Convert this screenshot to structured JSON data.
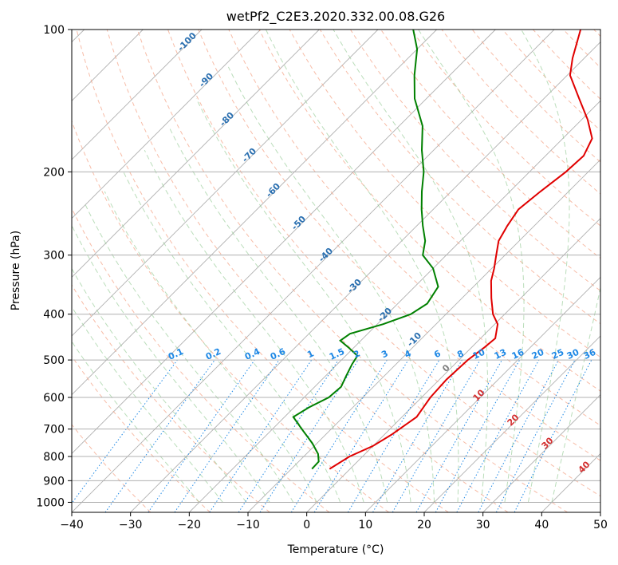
{
  "chart_data": {
    "type": "line",
    "title": "wetPf2_C2E3.2020.332.00.08.G26",
    "xlabel": "Temperature (°C)",
    "ylabel": "Pressure (hPa)",
    "xlim": [
      -40,
      50
    ],
    "ylim": [
      1050,
      100
    ],
    "y_scale": "log",
    "grid": true,
    "x_ticks": [
      -40,
      -30,
      -20,
      -10,
      0,
      10,
      20,
      30,
      40,
      50
    ],
    "x_tick_labels": [
      "−40",
      "−30",
      "−20",
      "−10",
      "0",
      "10",
      "20",
      "30",
      "40",
      "50"
    ],
    "y_ticks": [
      1000,
      900,
      800,
      700,
      600,
      500,
      400,
      300,
      200,
      100
    ],
    "y_tick_labels": [
      "1000",
      "900",
      "800",
      "700",
      "600",
      "500",
      "400",
      "300",
      "200",
      "100"
    ],
    "skew": 45,
    "series": [
      {
        "color": "#e00000",
        "points": [
          {
            "p": 850,
            "t": -3.5
          },
          {
            "p": 800,
            "t": -2.2
          },
          {
            "p": 760,
            "t": 0.0
          },
          {
            "p": 720,
            "t": 1.2
          },
          {
            "p": 660,
            "t": 2.5
          },
          {
            "p": 600,
            "t": 1.5
          },
          {
            "p": 550,
            "t": 1.2
          },
          {
            "p": 500,
            "t": 1.5
          },
          {
            "p": 470,
            "t": 2.2
          },
          {
            "p": 450,
            "t": 2.5
          },
          {
            "p": 420,
            "t": 0.5
          },
          {
            "p": 400,
            "t": -2.0
          },
          {
            "p": 370,
            "t": -5.0
          },
          {
            "p": 340,
            "t": -8.0
          },
          {
            "p": 320,
            "t": -9.6
          },
          {
            "p": 300,
            "t": -11.5
          },
          {
            "p": 280,
            "t": -13.5
          },
          {
            "p": 260,
            "t": -14.6
          },
          {
            "p": 240,
            "t": -15.5
          },
          {
            "p": 220,
            "t": -14.8
          },
          {
            "p": 200,
            "t": -13.8
          },
          {
            "p": 185,
            "t": -13.5
          },
          {
            "p": 170,
            "t": -15.0
          },
          {
            "p": 155,
            "t": -19.0
          },
          {
            "p": 140,
            "t": -24.0
          },
          {
            "p": 125,
            "t": -29.5
          },
          {
            "p": 115,
            "t": -32.0
          },
          {
            "p": 100,
            "t": -35.5
          }
        ]
      },
      {
        "color": "#008000",
        "points": [
          {
            "p": 850,
            "t": -6.5
          },
          {
            "p": 820,
            "t": -6.6
          },
          {
            "p": 790,
            "t": -8.0
          },
          {
            "p": 750,
            "t": -10.8
          },
          {
            "p": 700,
            "t": -15.0
          },
          {
            "p": 660,
            "t": -18.5
          },
          {
            "p": 630,
            "t": -17.5
          },
          {
            "p": 600,
            "t": -15.8
          },
          {
            "p": 570,
            "t": -15.5
          },
          {
            "p": 540,
            "t": -16.5
          },
          {
            "p": 510,
            "t": -17.5
          },
          {
            "p": 490,
            "t": -18.0
          },
          {
            "p": 470,
            "t": -21.0
          },
          {
            "p": 455,
            "t": -23.5
          },
          {
            "p": 440,
            "t": -23.0
          },
          {
            "p": 420,
            "t": -19.0
          },
          {
            "p": 400,
            "t": -16.0
          },
          {
            "p": 380,
            "t": -15.0
          },
          {
            "p": 350,
            "t": -16.0
          },
          {
            "p": 320,
            "t": -20.0
          },
          {
            "p": 300,
            "t": -24.0
          },
          {
            "p": 280,
            "t": -26.0
          },
          {
            "p": 260,
            "t": -29.0
          },
          {
            "p": 240,
            "t": -32.0
          },
          {
            "p": 220,
            "t": -35.0
          },
          {
            "p": 200,
            "t": -38.0
          },
          {
            "p": 180,
            "t": -42.0
          },
          {
            "p": 160,
            "t": -46.0
          },
          {
            "p": 140,
            "t": -52.0
          },
          {
            "p": 125,
            "t": -56.0
          },
          {
            "p": 110,
            "t": -60.0
          },
          {
            "p": 100,
            "t": -64.0
          }
        ]
      }
    ],
    "dry_adiabat_labels": [
      "-100",
      "-90",
      "-80",
      "-70",
      "-60",
      "-50",
      "-40",
      "-30",
      "-20",
      "-10",
      "0",
      "10",
      "20",
      "30",
      "40"
    ],
    "mixing_ratio_labels": [
      "0.1",
      "0.2",
      "0.4",
      "0.6",
      "1",
      "1.5",
      "2",
      "3",
      "4",
      "6",
      "8",
      "10",
      "13",
      "16",
      "20",
      "25",
      "30",
      "36"
    ],
    "colors": {
      "isotherm": "#b0b0b0",
      "dry_adiabat": "#f4a58a",
      "moist_adiabat": "#8cc68c",
      "mixing_ratio": "#1e88e5",
      "label_cold": "#2a6fb0",
      "label_warm": "#d32f2f"
    }
  }
}
